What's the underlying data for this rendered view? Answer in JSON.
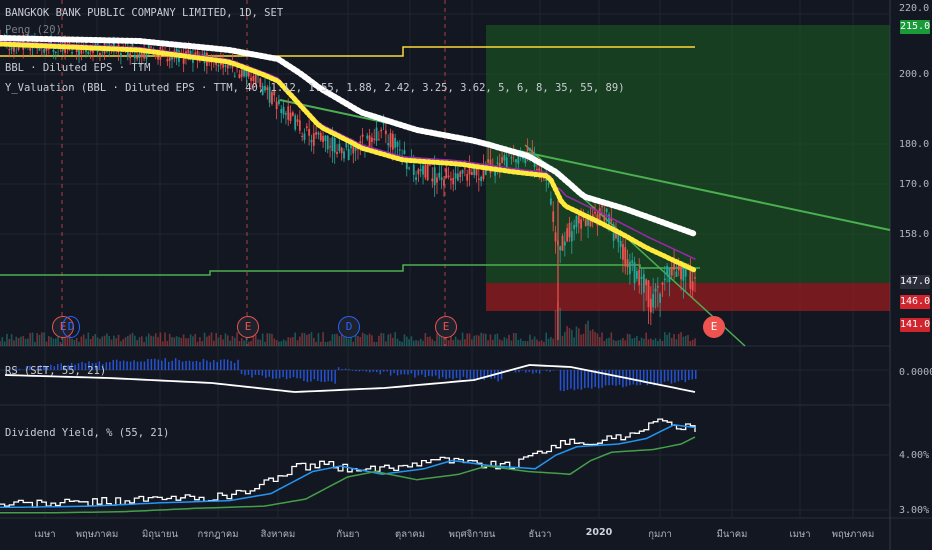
{
  "legends": {
    "main_title": "BANGKOK BANK PUBLIC COMPANY LIMITED, 1D, SET",
    "indicator_1": "Peng (20)",
    "indicator_2": "BBL · Diluted EPS · TTM",
    "indicator_3": "Y_Valuation (BBL · Diluted EPS · TTM, 40, 1.12, 1.55, 1.88, 2.42, 3.25, 3.62, 5, 6, 8, 35, 55, 89)",
    "rs": "RS (SET, 55, 21)",
    "div_yield": "Dividend Yield, % (55, 21)"
  },
  "price_axis": [
    "220.0",
    "200.0",
    "180.0",
    "170.0",
    "158.0"
  ],
  "price_tags": [
    {
      "label": "215.0",
      "bg": "#1a9b3a",
      "fg": "#ffffff",
      "value": 215
    },
    {
      "label": "147.0",
      "bg": "#2a2e39",
      "fg": "#ffffff",
      "value": 147
    },
    {
      "label": "146.0",
      "bg": "#d1252e",
      "fg": "#ffffff",
      "value": 146
    },
    {
      "label": "141.0",
      "bg": "#d1252e",
      "fg": "#ffffff",
      "value": 141
    }
  ],
  "rs_axis": [
    "0.0000"
  ],
  "dy_axis": [
    "4.00%",
    "3.00%"
  ],
  "x_labels": [
    "เมษา",
    "พฤษภาคม",
    "มิถุนายน",
    "กรกฎาคม",
    "สิงหาคม",
    "กันยา",
    "ตุลาคม",
    "พฤศจิกายน",
    "ธันวา",
    "2020",
    "กุมภา",
    "มีนาคม",
    "เมษา",
    "พฤษภาคม"
  ],
  "events": [
    {
      "label": "E",
      "type": "earnings"
    },
    {
      "label": "D",
      "type": "dividend"
    },
    {
      "label": "E",
      "type": "earnings"
    },
    {
      "label": "D",
      "type": "dividend"
    },
    {
      "label": "E",
      "type": "earnings"
    },
    {
      "label": "E",
      "type": "earnings-upcoming"
    }
  ],
  "colors": {
    "background": "#131722",
    "up": "#26a69a",
    "down": "#ef5350",
    "ma_white": "#ffffff",
    "ma_yellow": "#ffeb3b",
    "ma_purple": "#9c27b0",
    "ma_green_line": "#4caf50",
    "eps_yellow": "#fdd835",
    "rs_hist": "#2962ff",
    "dy_white": "#ffffff",
    "dy_blue": "#2196f3",
    "dy_green": "#43a047"
  },
  "chart_data": {
    "type": "candlestick",
    "x": [
      "Apr 2019",
      "May 2019",
      "Jun 2019",
      "Jul 2019",
      "Aug 2019",
      "Sep 2019",
      "Oct 2019",
      "Nov 2019",
      "Dec 2019",
      "Jan 2020",
      "Feb 2020",
      "Mar 2020",
      "Apr 2020",
      "May 2020"
    ],
    "price_close_approx": [
      210,
      209,
      207,
      200,
      183,
      178,
      172,
      171,
      174,
      160,
      151,
      null,
      null,
      null
    ],
    "ma_white": [
      209,
      208,
      206,
      202,
      194,
      187,
      182,
      178,
      173,
      165,
      158,
      null,
      null,
      null
    ],
    "ma_yellow": [
      207,
      206,
      203,
      196,
      180,
      176,
      174,
      172,
      171,
      163,
      150,
      null,
      null,
      null
    ],
    "rs_line_approx": [
      0.0,
      -0.1,
      -0.2,
      -0.3,
      -0.35,
      -0.3,
      -0.2,
      0.05,
      0.2,
      0.1,
      -0.25,
      null,
      null,
      null
    ],
    "dividend_yield_pct_approx": [
      3.15,
      3.2,
      3.3,
      3.45,
      3.75,
      3.9,
      3.85,
      3.9,
      4.0,
      4.15,
      4.45,
      null,
      null,
      null
    ],
    "ylim": [
      135,
      222
    ]
  }
}
